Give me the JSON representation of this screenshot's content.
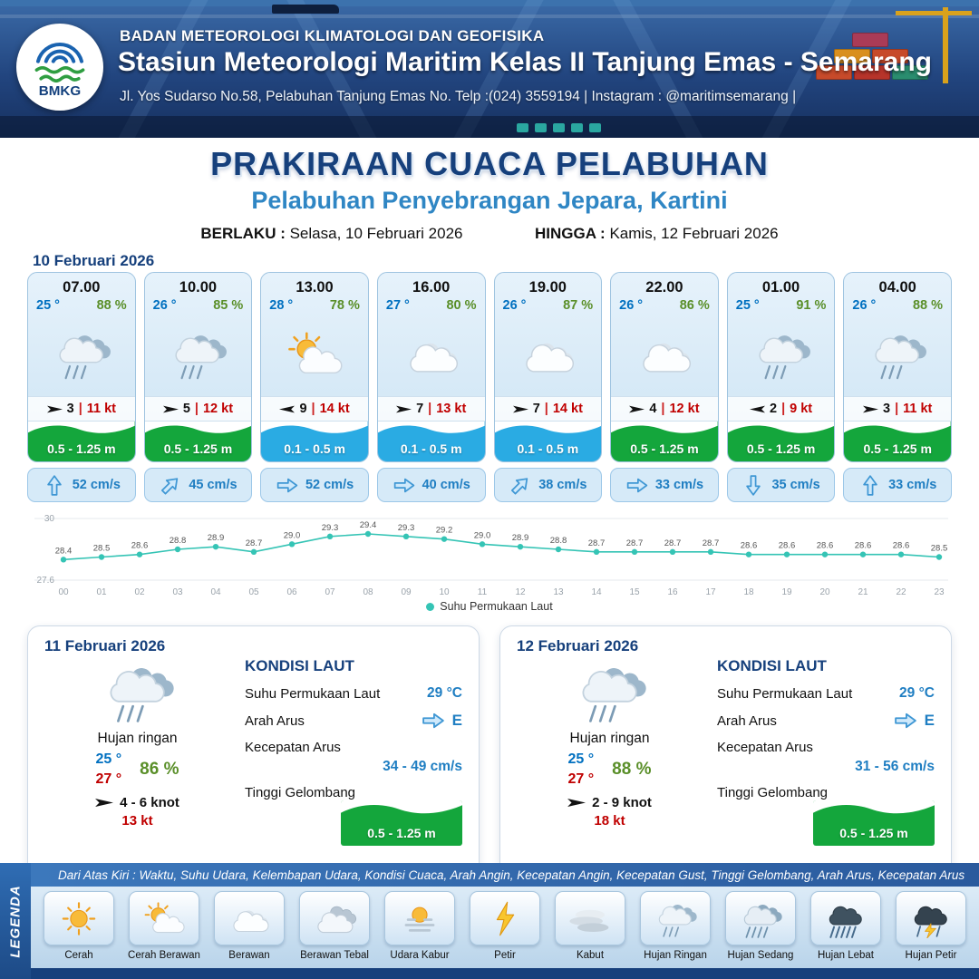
{
  "header": {
    "logo": "BMKG",
    "agency": "BADAN METEOROLOGI KLIMATOLOGI DAN GEOFISIKA",
    "station": "Stasiun Meteorologi Maritim Kelas II Tanjung Emas - Semarang",
    "address": "Jl. Yos Sudarso No.58, Pelabuhan Tanjung Emas No. Telp :(024) 3559194 | Instagram : @maritimsemarang |"
  },
  "title": {
    "main": "PRAKIRAAN CUACA PELABUHAN",
    "subtitle": "Pelabuhan Penyebrangan Jepara, Kartini",
    "valid_label": "BERLAKU :",
    "valid_value": "Selasa, 10 Februari 2026",
    "until_label": "HINGGA :",
    "until_value": "Kamis, 12 Februari 2026"
  },
  "ui": {
    "sep": "|"
  },
  "day1": {
    "date": "10 Februari 2026",
    "slots": [
      {
        "time": "07.00",
        "temp": "25 °",
        "rh": "88 %",
        "icon": "rain-light",
        "wind_dir": "right",
        "wind": "3",
        "gust": "11 kt",
        "wave": "0.5 - 1.25 m",
        "wave_level": "green",
        "cur_dir": "up",
        "cur": "52 cm/s"
      },
      {
        "time": "10.00",
        "temp": "26 °",
        "rh": "85 %",
        "icon": "rain-light",
        "wind_dir": "right",
        "wind": "5",
        "gust": "12 kt",
        "wave": "0.5 - 1.25 m",
        "wave_level": "green",
        "cur_dir": "up-right",
        "cur": "45 cm/s"
      },
      {
        "time": "13.00",
        "temp": "28 °",
        "rh": "78 %",
        "icon": "sun-cloud",
        "wind_dir": "left",
        "wind": "9",
        "gust": "14 kt",
        "wave": "0.1 - 0.5 m",
        "wave_level": "blue",
        "cur_dir": "right",
        "cur": "52 cm/s"
      },
      {
        "time": "16.00",
        "temp": "27 °",
        "rh": "80 %",
        "icon": "cloud",
        "wind_dir": "right",
        "wind": "7",
        "gust": "13 kt",
        "wave": "0.1 - 0.5 m",
        "wave_level": "blue",
        "cur_dir": "right",
        "cur": "40 cm/s"
      },
      {
        "time": "19.00",
        "temp": "26 °",
        "rh": "87 %",
        "icon": "cloud",
        "wind_dir": "right",
        "wind": "7",
        "gust": "14 kt",
        "wave": "0.1 - 0.5 m",
        "wave_level": "blue",
        "cur_dir": "up-right",
        "cur": "38 cm/s"
      },
      {
        "time": "22.00",
        "temp": "26 °",
        "rh": "86 %",
        "icon": "cloud",
        "wind_dir": "right",
        "wind": "4",
        "gust": "12 kt",
        "wave": "0.5 - 1.25 m",
        "wave_level": "green",
        "cur_dir": "right",
        "cur": "33 cm/s"
      },
      {
        "time": "01.00",
        "temp": "25 °",
        "rh": "91 %",
        "icon": "rain-light",
        "wind_dir": "left",
        "wind": "2",
        "gust": "9 kt",
        "wave": "0.5 - 1.25 m",
        "wave_level": "green",
        "cur_dir": "down",
        "cur": "35 cm/s"
      },
      {
        "time": "04.00",
        "temp": "26 °",
        "rh": "88 %",
        "icon": "rain-light",
        "wind_dir": "right",
        "wind": "3",
        "gust": "11 kt",
        "wave": "0.5 - 1.25 m",
        "wave_level": "green",
        "cur_dir": "up",
        "cur": "33 cm/s"
      }
    ]
  },
  "chart_data": {
    "type": "line",
    "series_label": "Suhu Permukaan Laut",
    "x": [
      "00",
      "01",
      "02",
      "03",
      "04",
      "05",
      "06",
      "07",
      "08",
      "09",
      "10",
      "11",
      "12",
      "13",
      "14",
      "15",
      "16",
      "17",
      "18",
      "19",
      "20",
      "21",
      "22",
      "23"
    ],
    "values": [
      28.4,
      28.5,
      28.6,
      28.8,
      28.9,
      28.7,
      29.0,
      29.3,
      29.4,
      29.3,
      29.2,
      29.0,
      28.9,
      28.8,
      28.7,
      28.7,
      28.7,
      28.7,
      28.6,
      28.6,
      28.6,
      28.6,
      28.6,
      28.5
    ],
    "xlabel": "",
    "ylabel": "",
    "ylim": [
      27.6,
      30
    ],
    "line_color": "#35c4b5",
    "grid": true,
    "legend_position": "bottom"
  },
  "days": [
    {
      "date": "11 Februari 2026",
      "icon": "rain-light",
      "condition": "Hujan ringan",
      "temp_min": "25 °",
      "temp_max": "27 °",
      "rh": "86 %",
      "wind_dir": "right",
      "wind": "4  - 6 knot",
      "gust": "13 kt",
      "sea": {
        "title": "KONDISI LAUT",
        "rows": {
          "sst_label": "Suhu Permukaan Laut",
          "sst": "29 °C",
          "dir_label": "Arah Arus",
          "dir": "E",
          "speed_label": "Kecepatan Arus",
          "speed": "34 - 49 cm/s",
          "wave_label": "Tinggi Gelombang",
          "wave": "0.5 - 1.25 m"
        }
      }
    },
    {
      "date": "12 Februari 2026",
      "icon": "rain-light",
      "condition": "Hujan ringan",
      "temp_min": "25 °",
      "temp_max": "27 °",
      "rh": "88 %",
      "wind_dir": "right",
      "wind": "2  - 9 knot",
      "gust": "18 kt",
      "sea": {
        "title": "KONDISI LAUT",
        "rows": {
          "sst_label": "Suhu Permukaan Laut",
          "sst": "29 °C",
          "dir_label": "Arah Arus",
          "dir": "E",
          "speed_label": "Kecepatan Arus",
          "speed": "31 - 56 cm/s",
          "wave_label": "Tinggi Gelombang",
          "wave": "0.5 - 1.25 m"
        }
      }
    }
  ],
  "legend": {
    "vertical_title": "LEGENDA",
    "note": "Dari Atas Kiri : Waktu, Suhu Udara, Kelembapan Udara, Kondisi Cuaca, Arah Angin, Kecepatan Angin, Kecepatan Gust, Tinggi Gelombang, Arah Arus, Kecepatan Arus",
    "items": [
      {
        "label": "Cerah",
        "icon": "sun"
      },
      {
        "label": "Cerah Berawan",
        "icon": "sun-cloud"
      },
      {
        "label": "Berawan",
        "icon": "cloud"
      },
      {
        "label": "Berawan Tebal",
        "icon": "clouds"
      },
      {
        "label": "Udara Kabur",
        "icon": "haze"
      },
      {
        "label": "Petir",
        "icon": "lightning"
      },
      {
        "label": "Kabut",
        "icon": "fog"
      },
      {
        "label": "Hujan Ringan",
        "icon": "rain-light"
      },
      {
        "label": "Hujan Sedang",
        "icon": "rain-medium"
      },
      {
        "label": "Hujan Lebat",
        "icon": "rain-heavy"
      },
      {
        "label": "Hujan Petir",
        "icon": "storm"
      }
    ]
  },
  "colors": {
    "navy": "#16407c",
    "subtitle_blue": "#2f86c4",
    "temp_blue": "#0070c0",
    "value_blue": "#1f7ec2",
    "rh_green": "#5a8f29",
    "gust_red": "#c00000",
    "wave_green": "#14a63c",
    "wave_blue": "#2aabe3",
    "sst_teal": "#35c4b5"
  }
}
